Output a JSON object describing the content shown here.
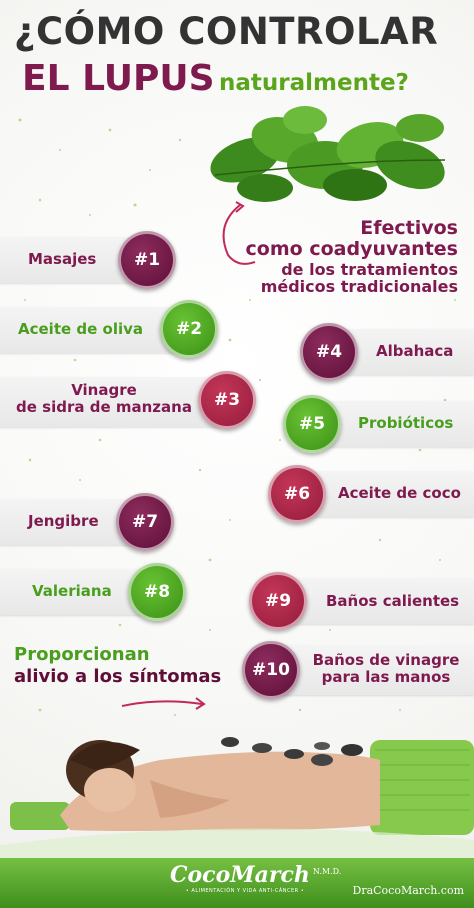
{
  "header": {
    "line1": "¿CÓMO CONTROLAR",
    "line2": "EL LUPUS",
    "line3": "naturalmente?"
  },
  "intro": {
    "line1": "Efectivos",
    "line2": "como coadyuvantes",
    "line3": "de los tratamientos",
    "line4": "médicos tradicionales"
  },
  "items": [
    {
      "badge": "#1",
      "label": "Masajes"
    },
    {
      "badge": "#2",
      "label": "Aceite de oliva"
    },
    {
      "badge": "#3",
      "label_line1": "Vinagre",
      "label_line2": "de sidra de manzana"
    },
    {
      "badge": "#4",
      "label": "Albahaca"
    },
    {
      "badge": "#5",
      "label": "Probióticos"
    },
    {
      "badge": "#6",
      "label": "Aceite de coco"
    },
    {
      "badge": "#7",
      "label": "Jengibre"
    },
    {
      "badge": "#8",
      "label": "Valeriana"
    },
    {
      "badge": "#9",
      "label": "Baños calientes"
    },
    {
      "badge": "#10",
      "label_line1": "Baños de vinagre",
      "label_line2": "para las manos"
    }
  ],
  "outro": {
    "line1": "Proporcionan",
    "line2": "alivio a los síntomas"
  },
  "footer": {
    "brand": "CocoMarch",
    "credential": "N.M.D.",
    "tagline": "• ALIMENTACIÓN Y VIDA ANTI-CÁNCER •",
    "site": "DraCocoMarch.com"
  },
  "colors": {
    "purple": "#7e1a4e",
    "green": "#4a9e1e",
    "red": "#941c3c"
  }
}
